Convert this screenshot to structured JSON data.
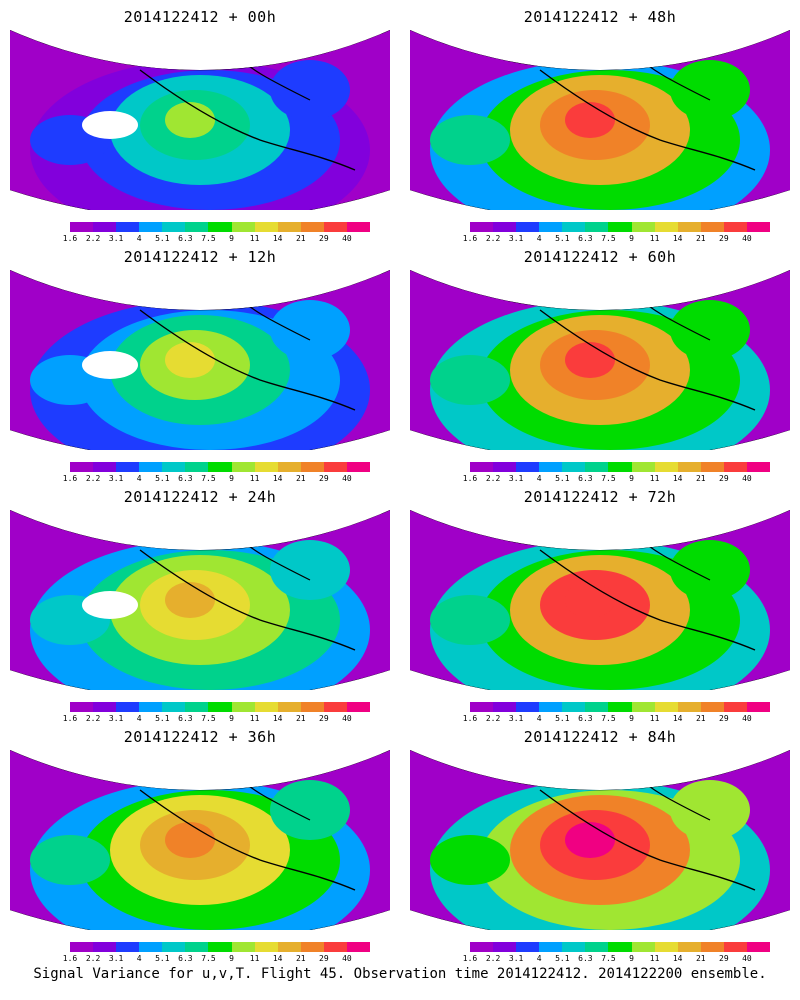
{
  "panels": [
    {
      "title": "2014122412 + 00h",
      "level": 0.0
    },
    {
      "title": "2014122412 + 48h",
      "level": 0.75
    },
    {
      "title": "2014122412 + 12h",
      "level": 0.2
    },
    {
      "title": "2014122412 + 60h",
      "level": 0.8
    },
    {
      "title": "2014122412 + 24h",
      "level": 0.45
    },
    {
      "title": "2014122412 + 72h",
      "level": 0.85
    },
    {
      "title": "2014122412 + 36h",
      "level": 0.65
    },
    {
      "title": "2014122412 + 84h",
      "level": 0.9
    }
  ],
  "colorbar": {
    "ticks": [
      "1.6",
      "2.2",
      "3.1",
      "4",
      "5.1",
      "6.3",
      "7.5",
      "9",
      "11",
      "14",
      "21",
      "29",
      "40"
    ],
    "colors": [
      "#a000c8",
      "#8200dc",
      "#1e3cff",
      "#00a0ff",
      "#00c8c8",
      "#00d28c",
      "#00dc00",
      "#a0e632",
      "#e6dc32",
      "#e6af2d",
      "#f08228",
      "#fa3c3c",
      "#f00082"
    ]
  },
  "footer": "Signal Variance for u,v,T. Flight 45. Observation time 2014122412. 2014122200 ensemble."
}
